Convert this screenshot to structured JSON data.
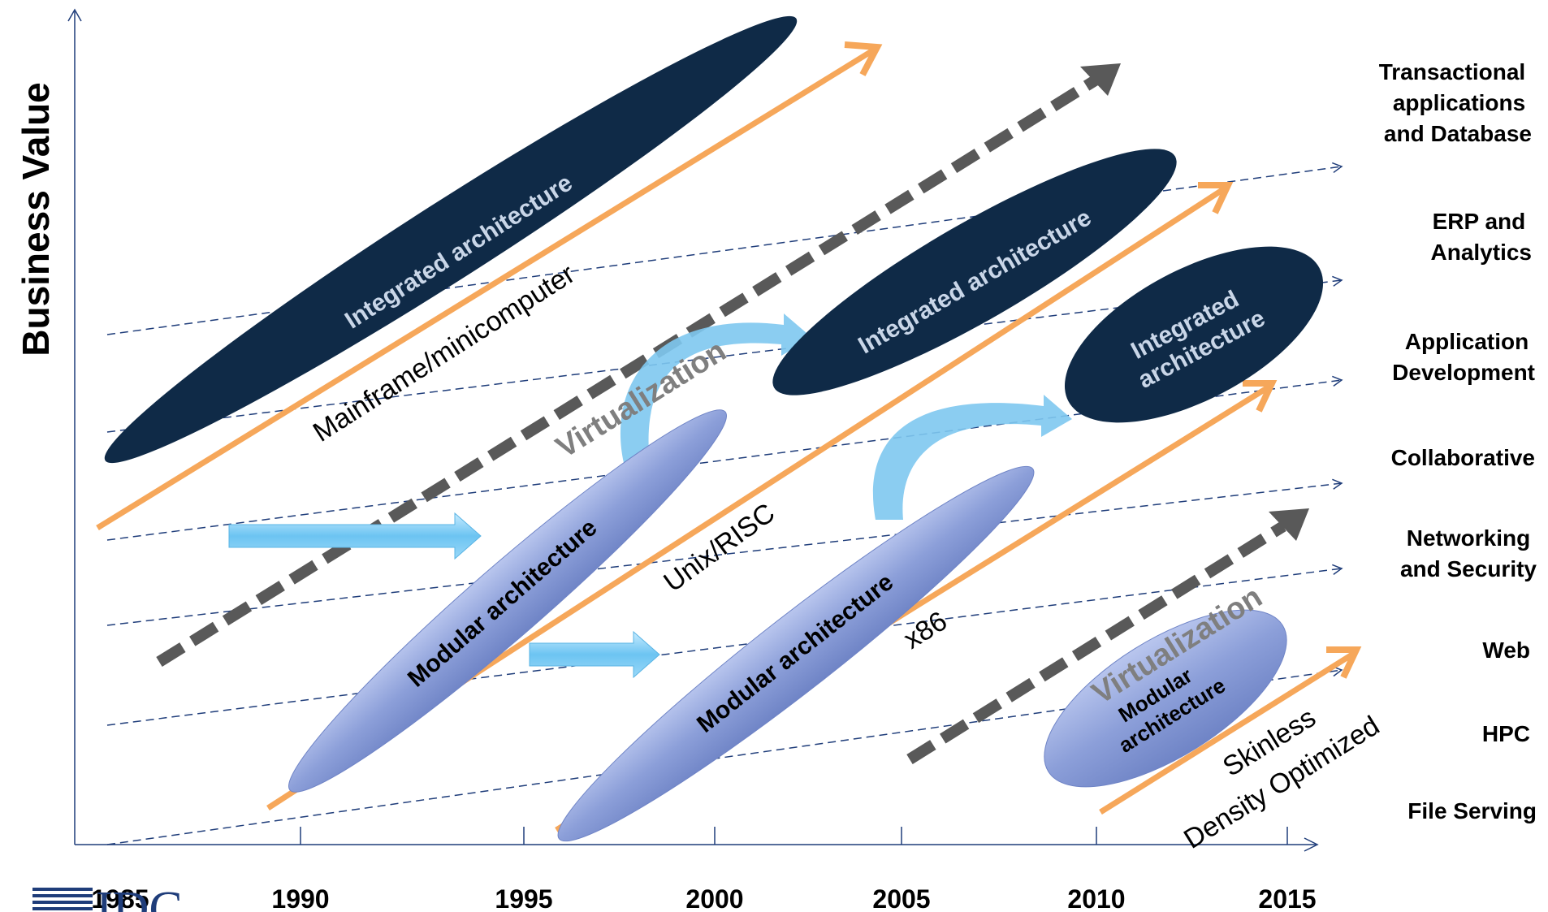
{
  "y_axis_title": "Business Value",
  "years": [
    "1985",
    "1990",
    "1995",
    "2000",
    "2005",
    "2010",
    "2015"
  ],
  "categories": [
    [
      "Transactional",
      "applications",
      "and Database"
    ],
    [
      "ERP and",
      "Analytics"
    ],
    [
      "Application",
      "Development"
    ],
    [
      "Collaborative"
    ],
    [
      "Networking",
      "and Security"
    ],
    [
      "Web"
    ],
    [
      "HPC"
    ],
    [
      "File Serving"
    ]
  ],
  "shapes": {
    "integrated_1": "Integrated architecture",
    "integrated_2": "Integrated architecture",
    "integrated_3_line1": "Integrated",
    "integrated_3_line2": "architecture",
    "modular_1": "Modular architecture",
    "modular_2": "Modular architecture",
    "modular_3_line1": "Modular",
    "modular_3_line2": "architecture"
  },
  "labels": {
    "mainframe": "Mainframe/minicomputer",
    "unix": "Unix/RISC",
    "x86": "x86",
    "skinless": "Skinless",
    "density": "Density Optimized",
    "virtualization_1": "Virtualization",
    "virtualization_2": "Virtualization"
  },
  "logo_text": "IDC",
  "colors": {
    "integrated": "#0f2a47",
    "modular": "#8c9fd9",
    "timeline_arrow": "#f6a75a",
    "virtualization_arrow": "#595959",
    "transition_arrow": "#7ec8f0",
    "guide_line": "#1f3d7a"
  }
}
